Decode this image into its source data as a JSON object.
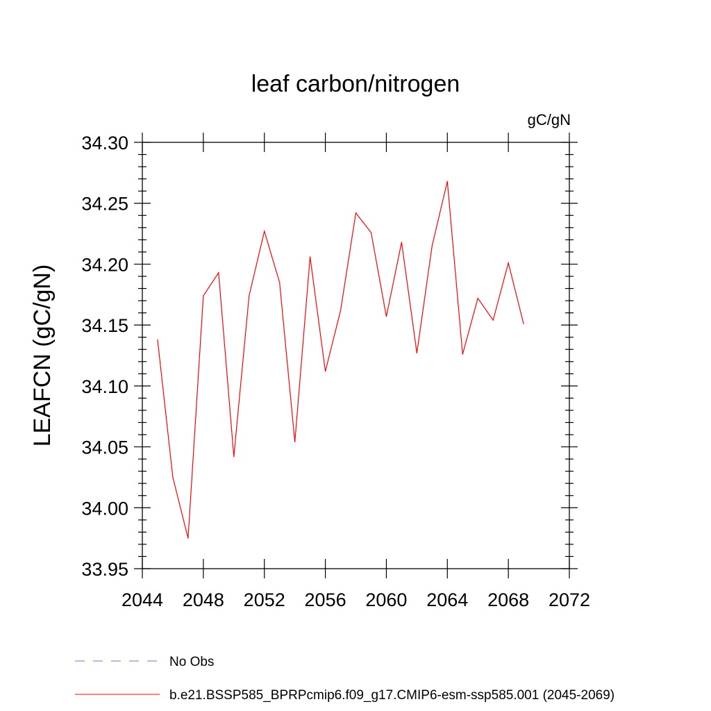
{
  "chart_data": {
    "type": "line",
    "title": "leaf carbon/nitrogen",
    "units_label": "gC/gN",
    "ylabel": "LEAFCN  (gC/gN)",
    "xlabel": "",
    "xlim": [
      2044,
      2072
    ],
    "ylim": [
      33.95,
      34.3
    ],
    "xticks": [
      "2044",
      "2048",
      "2052",
      "2056",
      "2060",
      "2064",
      "2068",
      "2072"
    ],
    "yticks": [
      "33.95",
      "34.00",
      "34.05",
      "34.10",
      "34.15",
      "34.20",
      "34.25",
      "34.30"
    ],
    "grid": false,
    "legend_position": "bottom",
    "series": [
      {
        "name": "b.e21.BSSP585_BPRPcmip6.f09_g17.CMIP6-esm-ssp585.001 (2045-2069)",
        "color": "#ff0000",
        "style": "solid",
        "x": [
          2045,
          2046,
          2047,
          2048,
          2049,
          2050,
          2051,
          2052,
          2053,
          2054,
          2055,
          2056,
          2057,
          2058,
          2059,
          2060,
          2061,
          2062,
          2063,
          2064,
          2065,
          2066,
          2067,
          2068,
          2069
        ],
        "values": [
          34.138,
          34.025,
          33.975,
          34.174,
          34.193,
          34.042,
          34.174,
          34.227,
          34.185,
          34.054,
          34.206,
          34.112,
          34.162,
          34.242,
          34.226,
          34.157,
          34.218,
          34.127,
          34.215,
          34.268,
          34.126,
          34.172,
          34.154,
          34.201,
          34.151
        ]
      },
      {
        "name": "No Obs",
        "color": "#7a6ccf",
        "style": "dashed",
        "x": [],
        "values": []
      }
    ]
  }
}
